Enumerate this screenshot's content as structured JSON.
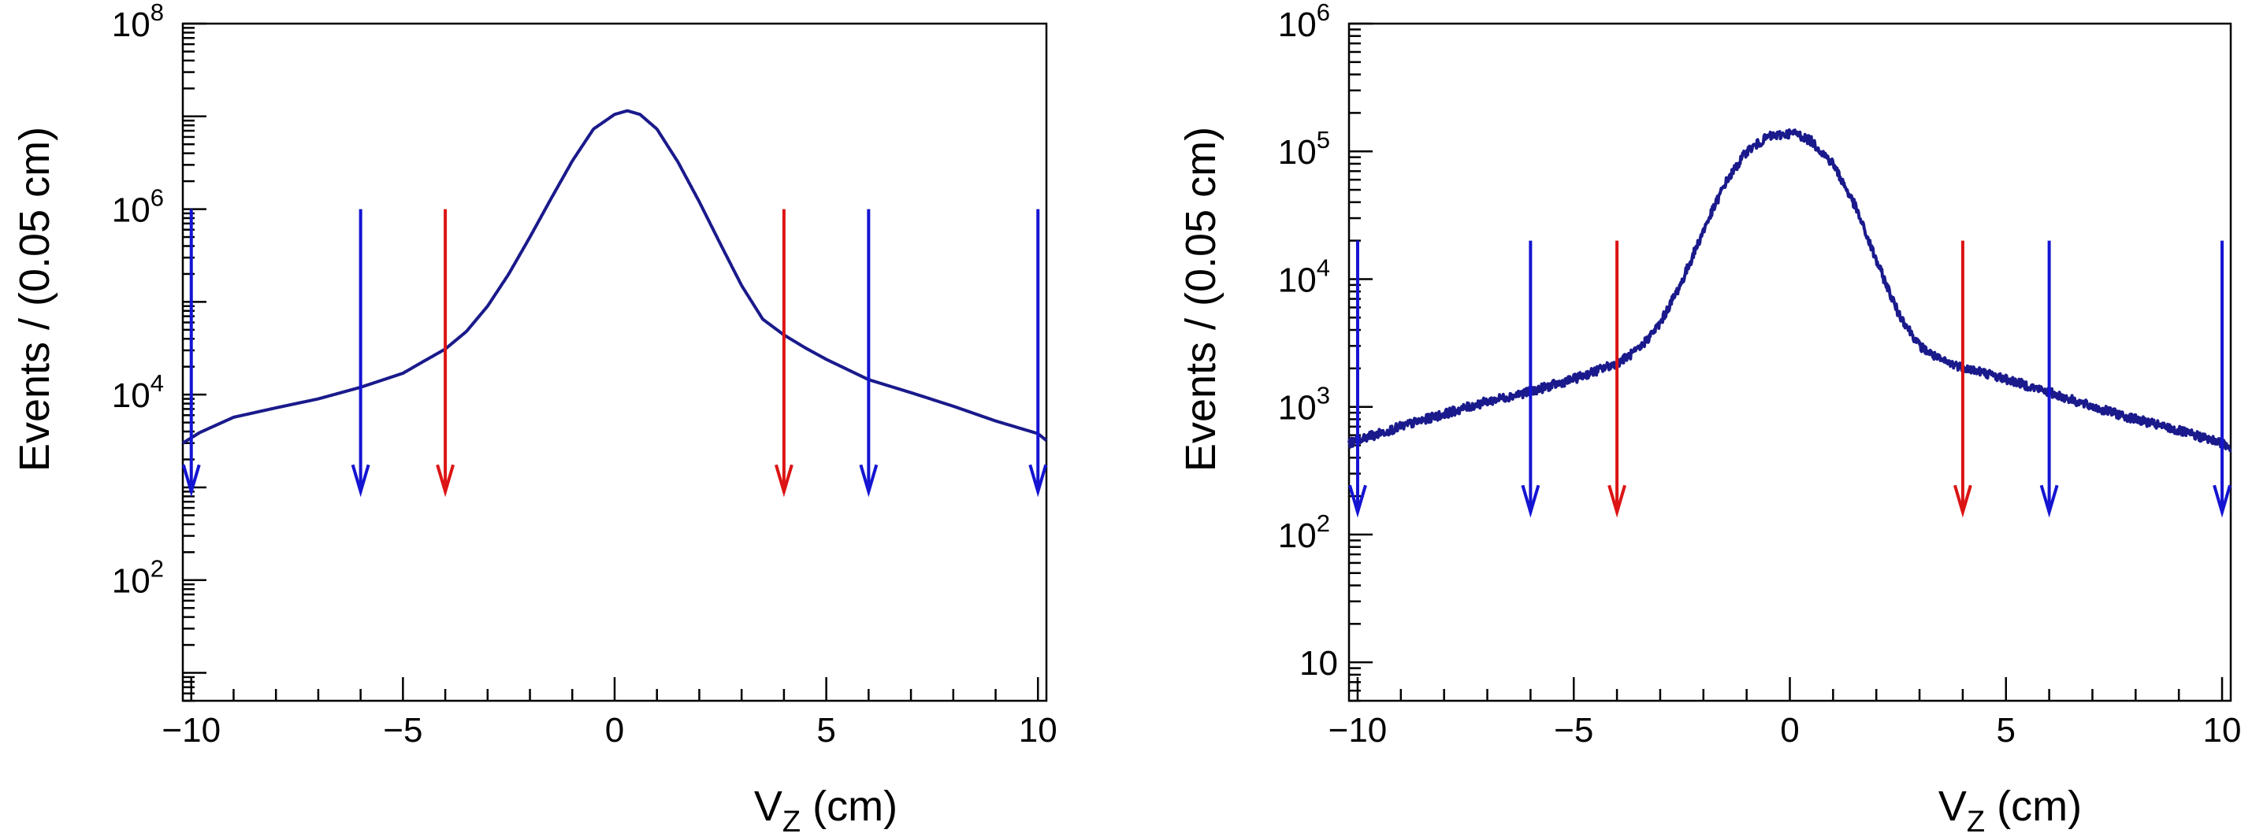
{
  "colors": {
    "curve": "#1a1a8c",
    "outer_arrow": "#1414d2",
    "inner_arrow": "#dc1414",
    "frame": "#000000"
  },
  "chart_data": [
    {
      "type": "line",
      "title": "",
      "xlabel": "V_Z (cm)",
      "ylabel": "Events / (0.05 cm)",
      "xlim": [
        -10.2,
        10.2
      ],
      "ylim": [
        5,
        100000000
      ],
      "y_scale": "log",
      "x_ticks": [
        -10,
        -5,
        0,
        5,
        10
      ],
      "x_tick_labels": [
        "−10",
        "−5",
        "0",
        "5",
        "10"
      ],
      "y_ticks": [
        100,
        10000,
        1000000,
        100000000
      ],
      "y_tick_labels": [
        {
          "base": "10",
          "exp": "2"
        },
        {
          "base": "10",
          "exp": "4"
        },
        {
          "base": "10",
          "exp": "6"
        },
        {
          "base": "10",
          "exp": "8"
        }
      ],
      "series": [
        {
          "x": [
            -10.2,
            -9.8,
            -9,
            -8,
            -7,
            -6,
            -5,
            -4.5,
            -4,
            -3.5,
            -3,
            -2.5,
            -2,
            -1.5,
            -1,
            -0.5,
            0,
            0.3,
            0.6,
            1,
            1.5,
            2,
            2.5,
            3,
            3.5,
            4,
            4.5,
            5,
            6,
            7,
            8,
            9,
            10,
            10.2
          ],
          "y": [
            3000,
            3900,
            5700,
            7200,
            9000,
            12000,
            17000,
            23000,
            31000,
            48000,
            90000,
            200000,
            500000,
            1300000,
            3300000,
            7300000,
            10500000,
            11500000,
            10500000,
            7300000,
            3200000,
            1200000,
            420000,
            150000,
            65000,
            44000,
            32000,
            24000,
            14500,
            10500,
            7500,
            5200,
            3800,
            3200
          ]
        }
      ],
      "arrows": [
        {
          "x": -10,
          "y_top": 1000000,
          "y_bottom": 900,
          "group": "outer"
        },
        {
          "x": -6,
          "y_top": 1000000,
          "y_bottom": 900,
          "group": "outer"
        },
        {
          "x": -4,
          "y_top": 1000000,
          "y_bottom": 900,
          "group": "inner"
        },
        {
          "x": 4,
          "y_top": 1000000,
          "y_bottom": 900,
          "group": "inner"
        },
        {
          "x": 6,
          "y_top": 1000000,
          "y_bottom": 900,
          "group": "outer"
        },
        {
          "x": 10,
          "y_top": 1000000,
          "y_bottom": 900,
          "group": "outer"
        }
      ],
      "grid": false,
      "legend": "none"
    },
    {
      "type": "line",
      "title": "",
      "xlabel": "V_Z (cm)",
      "ylabel": "Events / (0.05 cm)",
      "xlim": [
        -10.2,
        10.2
      ],
      "ylim": [
        5,
        1000000
      ],
      "y_scale": "log",
      "x_ticks": [
        -10,
        -5,
        0,
        5,
        10
      ],
      "x_tick_labels": [
        "−10",
        "−5",
        "0",
        "5",
        "10"
      ],
      "y_ticks": [
        10,
        100,
        1000,
        10000,
        100000,
        1000000
      ],
      "y_tick_labels": [
        {
          "base": "10",
          "exp": ""
        },
        {
          "base": "10",
          "exp": "2"
        },
        {
          "base": "10",
          "exp": "3"
        },
        {
          "base": "10",
          "exp": "4"
        },
        {
          "base": "10",
          "exp": "5"
        },
        {
          "base": "10",
          "exp": "6"
        }
      ],
      "series": [
        {
          "x": [
            -10.2,
            -9,
            -8,
            -7,
            -6,
            -5,
            -4.5,
            -4,
            -3.5,
            -3,
            -2.5,
            -2,
            -1.5,
            -1,
            -0.5,
            0,
            0.15,
            0.5,
            1,
            1.5,
            2,
            2.5,
            3,
            3.5,
            4,
            4.5,
            5,
            6,
            7,
            8,
            9,
            10,
            10.2
          ],
          "y": [
            520,
            700,
            880,
            1100,
            1320,
            1650,
            1900,
            2200,
            2800,
            4500,
            9500,
            24000,
            56000,
            100000,
            130000,
            138000,
            138000,
            120000,
            80000,
            38000,
            14000,
            5500,
            3000,
            2300,
            2050,
            1850,
            1650,
            1300,
            1000,
            800,
            650,
            520,
            480
          ],
          "noise": 0.035
        }
      ],
      "arrows": [
        {
          "x": -10,
          "y_top": 20000,
          "y_bottom": 150,
          "group": "outer"
        },
        {
          "x": -6,
          "y_top": 20000,
          "y_bottom": 150,
          "group": "outer"
        },
        {
          "x": -4,
          "y_top": 20000,
          "y_bottom": 150,
          "group": "inner"
        },
        {
          "x": 4,
          "y_top": 20000,
          "y_bottom": 150,
          "group": "inner"
        },
        {
          "x": 6,
          "y_top": 20000,
          "y_bottom": 150,
          "group": "outer"
        },
        {
          "x": 10,
          "y_top": 20000,
          "y_bottom": 150,
          "group": "outer"
        }
      ],
      "grid": false,
      "legend": "none"
    }
  ]
}
